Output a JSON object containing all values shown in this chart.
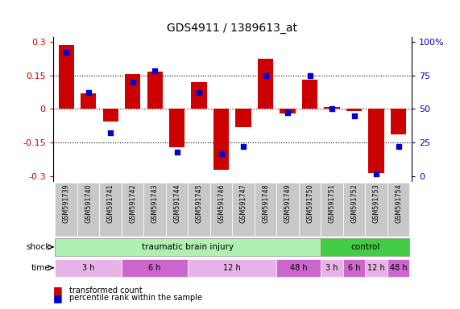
{
  "title": "GDS4911 / 1389613_at",
  "samples": [
    "GSM591739",
    "GSM591740",
    "GSM591741",
    "GSM591742",
    "GSM591743",
    "GSM591744",
    "GSM591745",
    "GSM591746",
    "GSM591747",
    "GSM591748",
    "GSM591749",
    "GSM591750",
    "GSM591751",
    "GSM591752",
    "GSM591753",
    "GSM591754"
  ],
  "bar_values": [
    0.285,
    0.07,
    -0.055,
    0.155,
    0.165,
    -0.17,
    0.12,
    -0.27,
    -0.08,
    0.225,
    -0.02,
    0.13,
    0.01,
    -0.01,
    -0.285,
    -0.115
  ],
  "dot_values": [
    92,
    62,
    32,
    70,
    78,
    18,
    62,
    17,
    22,
    75,
    47,
    75,
    50,
    45,
    2,
    22
  ],
  "ylim": [
    -0.32,
    0.32
  ],
  "yticks_left": [
    -0.3,
    -0.15,
    0,
    0.15,
    0.3
  ],
  "yticks_right": [
    0,
    25,
    50,
    75,
    100
  ],
  "time_labels": [
    {
      "label": "3 h",
      "start": 0,
      "end": 3,
      "color": "#e8b4e8"
    },
    {
      "label": "6 h",
      "start": 3,
      "end": 6,
      "color": "#cc66cc"
    },
    {
      "label": "12 h",
      "start": 6,
      "end": 10,
      "color": "#e8b4e8"
    },
    {
      "label": "48 h",
      "start": 10,
      "end": 12,
      "color": "#cc66cc"
    },
    {
      "label": "3 h",
      "start": 12,
      "end": 13,
      "color": "#e8b4e8"
    },
    {
      "label": "6 h",
      "start": 13,
      "end": 14,
      "color": "#cc66cc"
    },
    {
      "label": "12 h",
      "start": 14,
      "end": 15,
      "color": "#e8b4e8"
    },
    {
      "label": "48 h",
      "start": 15,
      "end": 16,
      "color": "#cc66cc"
    }
  ],
  "bar_color": "#cc0000",
  "dot_color": "#0000cc",
  "bg_color": "#ffffff",
  "zero_line_color": "#cc0000",
  "right_axis_color": "#0000cc",
  "tbi_color": "#b0f0b0",
  "ctrl_color": "#44cc44",
  "sample_box_color": "#c8c8c8"
}
